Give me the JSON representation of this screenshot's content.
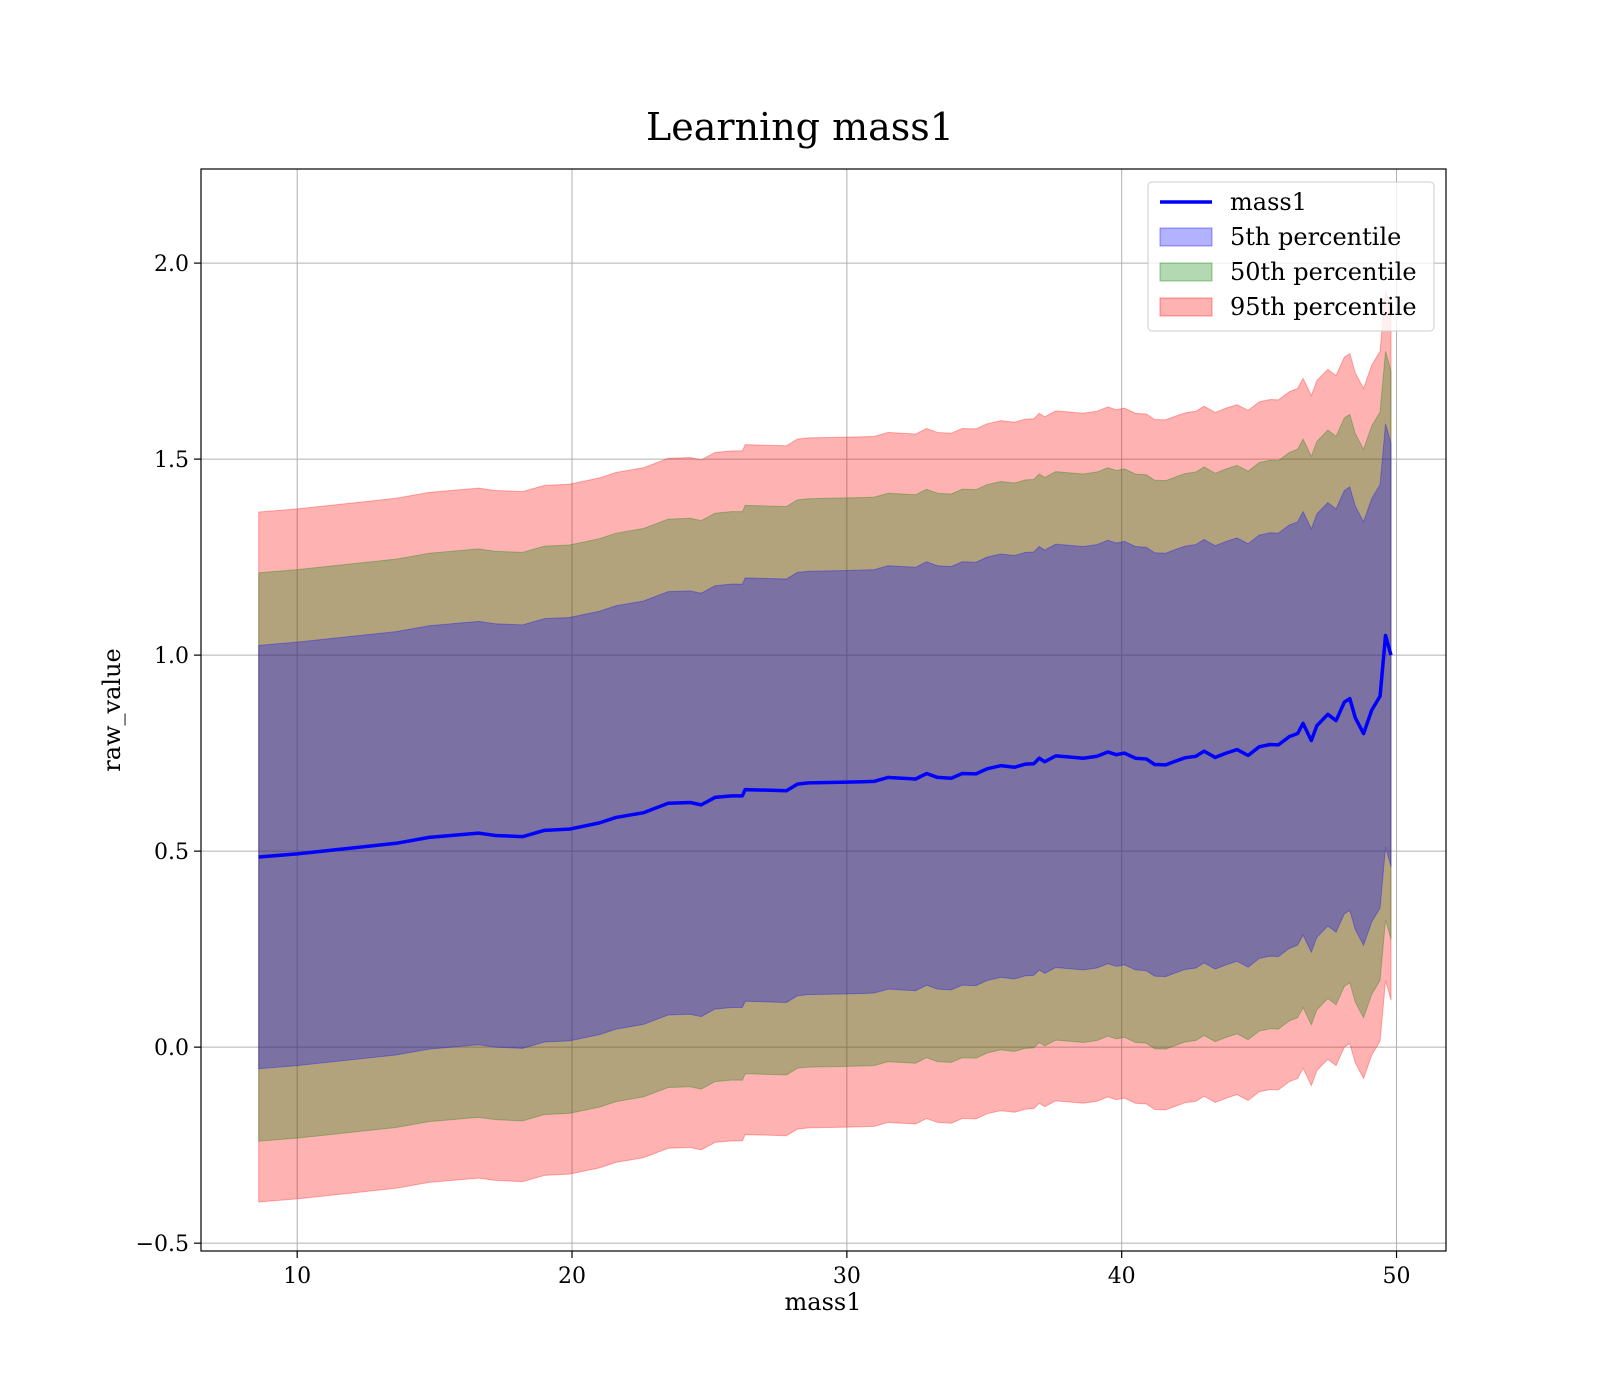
{
  "chart_data": {
    "type": "area",
    "title": "Learning mass1",
    "xlabel": "mass1",
    "ylabel": "raw_value",
    "xlim": [
      6.5,
      51.8
    ],
    "ylim": [
      -0.52,
      2.24
    ],
    "xticks": [
      10,
      20,
      30,
      40,
      50
    ],
    "yticks": [
      -0.5,
      0.0,
      0.5,
      1.0,
      1.5,
      2.0
    ],
    "xtick_labels": [
      "10",
      "20",
      "30",
      "40",
      "50"
    ],
    "ytick_labels": [
      "−0.5",
      "0.0",
      "0.5",
      "1.0",
      "1.5",
      "2.0"
    ],
    "grid": true,
    "legend_position": "top-right",
    "x": [
      8.6,
      10,
      12,
      13.6,
      14.8,
      16.6,
      17.2,
      18.2,
      19,
      19.9,
      21,
      21.6,
      22.6,
      23.5,
      24.3,
      24.7,
      25.2,
      25.8,
      26.2,
      26.3,
      27.8,
      28.2,
      28.6,
      29.3,
      30,
      30.6,
      31,
      31.5,
      32.5,
      32.9,
      33.3,
      33.8,
      34.2,
      34.7,
      35.1,
      35.6,
      36.1,
      36.5,
      36.8,
      37,
      37.2,
      37.6,
      38.1,
      38.6,
      39.1,
      39.5,
      39.8,
      40.1,
      40.5,
      40.9,
      41.2,
      41.6,
      41.9,
      42.3,
      42.7,
      43,
      43.4,
      43.8,
      44.2,
      44.6,
      45,
      45.4,
      45.7,
      46.1,
      46.4,
      46.6,
      46.9,
      47.1,
      47.5,
      47.8,
      48.1,
      48.3,
      48.5,
      48.8,
      49.1,
      49.4,
      49.6,
      49.8
    ],
    "series": [
      {
        "name": "mass1",
        "values": [
          0.485,
          0.493,
          0.508,
          0.52,
          0.535,
          0.546,
          0.54,
          0.537,
          0.553,
          0.556,
          0.572,
          0.586,
          0.598,
          0.622,
          0.624,
          0.618,
          0.637,
          0.641,
          0.641,
          0.657,
          0.654,
          0.671,
          0.674,
          0.675,
          0.676,
          0.677,
          0.678,
          0.688,
          0.684,
          0.698,
          0.688,
          0.686,
          0.698,
          0.697,
          0.71,
          0.718,
          0.714,
          0.722,
          0.723,
          0.737,
          0.728,
          0.743,
          0.74,
          0.737,
          0.742,
          0.753,
          0.746,
          0.75,
          0.737,
          0.735,
          0.721,
          0.72,
          0.728,
          0.738,
          0.742,
          0.755,
          0.739,
          0.75,
          0.759,
          0.744,
          0.766,
          0.772,
          0.771,
          0.792,
          0.8,
          0.826,
          0.782,
          0.82,
          0.849,
          0.833,
          0.88,
          0.889,
          0.84,
          0.8,
          0.86,
          0.895,
          1.05,
          1.0
        ]
      }
    ],
    "bands": [
      {
        "name": "5th percentile",
        "color": "#0000ff",
        "opacity": 0.3,
        "lower_offset": [
          -0.54,
          -0.54,
          -0.54,
          -0.54,
          -0.54,
          -0.54,
          -0.54,
          -0.54,
          -0.54,
          -0.54,
          -0.54,
          -0.54,
          -0.54,
          -0.54,
          -0.54,
          -0.54,
          -0.54,
          -0.54,
          -0.54,
          -0.54,
          -0.54,
          -0.54,
          -0.54,
          -0.54,
          -0.54,
          -0.54,
          -0.54,
          -0.54,
          -0.54,
          -0.54,
          -0.54,
          -0.54,
          -0.54,
          -0.54,
          -0.54,
          -0.54,
          -0.54,
          -0.54,
          -0.54,
          -0.54,
          -0.54,
          -0.54,
          -0.54,
          -0.54,
          -0.54,
          -0.54,
          -0.54,
          -0.54,
          -0.54,
          -0.54,
          -0.54,
          -0.54,
          -0.54,
          -0.54,
          -0.54,
          -0.54,
          -0.54,
          -0.54,
          -0.54,
          -0.54,
          -0.54,
          -0.54,
          -0.54,
          -0.54,
          -0.54,
          -0.54,
          -0.54,
          -0.54,
          -0.54,
          -0.54,
          -0.54,
          -0.54,
          -0.54,
          -0.54,
          -0.54,
          -0.54,
          -0.54,
          -0.54
        ],
        "upper_offset": [
          0.54,
          0.54,
          0.54,
          0.54,
          0.54,
          0.54,
          0.54,
          0.54,
          0.54,
          0.54,
          0.54,
          0.54,
          0.54,
          0.54,
          0.54,
          0.54,
          0.54,
          0.54,
          0.54,
          0.54,
          0.54,
          0.54,
          0.54,
          0.54,
          0.54,
          0.54,
          0.54,
          0.54,
          0.54,
          0.54,
          0.54,
          0.54,
          0.54,
          0.54,
          0.54,
          0.54,
          0.54,
          0.54,
          0.54,
          0.54,
          0.54,
          0.54,
          0.54,
          0.54,
          0.54,
          0.54,
          0.54,
          0.54,
          0.54,
          0.54,
          0.54,
          0.54,
          0.54,
          0.54,
          0.54,
          0.54,
          0.54,
          0.54,
          0.54,
          0.54,
          0.54,
          0.54,
          0.54,
          0.54,
          0.54,
          0.54,
          0.54,
          0.54,
          0.54,
          0.54,
          0.54,
          0.54,
          0.54,
          0.54,
          0.54,
          0.54,
          0.54,
          0.54
        ]
      },
      {
        "name": "50th percentile",
        "color": "#008000",
        "opacity": 0.3,
        "lower_offset": [
          -0.725,
          -0.725,
          -0.725,
          -0.725,
          -0.725,
          -0.725,
          -0.725,
          -0.725,
          -0.725,
          -0.725,
          -0.725,
          -0.725,
          -0.725,
          -0.725,
          -0.725,
          -0.725,
          -0.725,
          -0.725,
          -0.725,
          -0.725,
          -0.725,
          -0.725,
          -0.725,
          -0.725,
          -0.725,
          -0.725,
          -0.725,
          -0.725,
          -0.725,
          -0.725,
          -0.725,
          -0.725,
          -0.725,
          -0.725,
          -0.725,
          -0.725,
          -0.725,
          -0.725,
          -0.725,
          -0.725,
          -0.725,
          -0.725,
          -0.725,
          -0.725,
          -0.725,
          -0.725,
          -0.725,
          -0.725,
          -0.725,
          -0.725,
          -0.725,
          -0.725,
          -0.725,
          -0.725,
          -0.725,
          -0.725,
          -0.725,
          -0.725,
          -0.725,
          -0.725,
          -0.725,
          -0.725,
          -0.725,
          -0.725,
          -0.725,
          -0.725,
          -0.725,
          -0.725,
          -0.725,
          -0.725,
          -0.725,
          -0.725,
          -0.725,
          -0.725,
          -0.725,
          -0.725,
          -0.725,
          -0.725
        ],
        "upper_offset": [
          0.725,
          0.725,
          0.725,
          0.725,
          0.725,
          0.725,
          0.725,
          0.725,
          0.725,
          0.725,
          0.725,
          0.725,
          0.725,
          0.725,
          0.725,
          0.725,
          0.725,
          0.725,
          0.725,
          0.725,
          0.725,
          0.725,
          0.725,
          0.725,
          0.725,
          0.725,
          0.725,
          0.725,
          0.725,
          0.725,
          0.725,
          0.725,
          0.725,
          0.725,
          0.725,
          0.725,
          0.725,
          0.725,
          0.725,
          0.725,
          0.725,
          0.725,
          0.725,
          0.725,
          0.725,
          0.725,
          0.725,
          0.725,
          0.725,
          0.725,
          0.725,
          0.725,
          0.725,
          0.725,
          0.725,
          0.725,
          0.725,
          0.725,
          0.725,
          0.725,
          0.725,
          0.725,
          0.725,
          0.725,
          0.725,
          0.725,
          0.725,
          0.725,
          0.725,
          0.725,
          0.725,
          0.725,
          0.725,
          0.725,
          0.725,
          0.725,
          0.725,
          0.725
        ]
      },
      {
        "name": "95th percentile",
        "color": "#ff0000",
        "opacity": 0.3,
        "lower_offset": [
          -0.88,
          -0.88,
          -0.88,
          -0.88,
          -0.88,
          -0.88,
          -0.88,
          -0.88,
          -0.88,
          -0.88,
          -0.88,
          -0.88,
          -0.88,
          -0.88,
          -0.88,
          -0.88,
          -0.88,
          -0.88,
          -0.88,
          -0.88,
          -0.88,
          -0.88,
          -0.88,
          -0.88,
          -0.88,
          -0.88,
          -0.88,
          -0.88,
          -0.88,
          -0.88,
          -0.88,
          -0.88,
          -0.88,
          -0.88,
          -0.88,
          -0.88,
          -0.88,
          -0.88,
          -0.88,
          -0.88,
          -0.88,
          -0.88,
          -0.88,
          -0.88,
          -0.88,
          -0.88,
          -0.88,
          -0.88,
          -0.88,
          -0.88,
          -0.88,
          -0.88,
          -0.88,
          -0.88,
          -0.88,
          -0.88,
          -0.88,
          -0.88,
          -0.88,
          -0.88,
          -0.88,
          -0.88,
          -0.88,
          -0.88,
          -0.88,
          -0.88,
          -0.88,
          -0.88,
          -0.88,
          -0.88,
          -0.88,
          -0.88,
          -0.88,
          -0.88,
          -0.88,
          -0.88,
          -0.88,
          -0.88
        ],
        "upper_offset": [
          0.88,
          0.88,
          0.88,
          0.88,
          0.88,
          0.88,
          0.88,
          0.88,
          0.88,
          0.88,
          0.88,
          0.88,
          0.88,
          0.88,
          0.88,
          0.88,
          0.88,
          0.88,
          0.88,
          0.88,
          0.88,
          0.88,
          0.88,
          0.88,
          0.88,
          0.88,
          0.88,
          0.88,
          0.88,
          0.88,
          0.88,
          0.88,
          0.88,
          0.88,
          0.88,
          0.88,
          0.88,
          0.88,
          0.88,
          0.88,
          0.88,
          0.88,
          0.88,
          0.88,
          0.88,
          0.88,
          0.88,
          0.88,
          0.88,
          0.88,
          0.88,
          0.88,
          0.88,
          0.88,
          0.88,
          0.88,
          0.88,
          0.88,
          0.88,
          0.88,
          0.88,
          0.88,
          0.88,
          0.88,
          0.88,
          0.88,
          0.88,
          0.88,
          0.88,
          0.88,
          0.88,
          0.88,
          0.88,
          0.88,
          0.88,
          0.88,
          0.88,
          0.88
        ]
      }
    ],
    "line_color": "#0000ff",
    "legend": [
      "mass1",
      "5th percentile",
      "50th percentile",
      "95th percentile"
    ]
  }
}
